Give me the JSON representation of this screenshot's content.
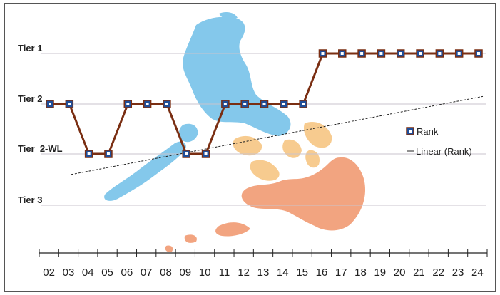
{
  "chart_data": {
    "type": "line",
    "title": "",
    "xlabel": "",
    "ylabel": "",
    "categories": [
      "02",
      "03",
      "04",
      "05",
      "06",
      "07",
      "08",
      "09",
      "10",
      "11",
      "12",
      "13",
      "14",
      "15",
      "16",
      "17",
      "18",
      "19",
      "20",
      "21",
      "22",
      "23",
      "24"
    ],
    "tiers": [
      "Tier 1",
      "Tier 2",
      "Tier  2-WL",
      "Tier 3"
    ],
    "series": [
      {
        "name": "Rank",
        "color": "#7a2e12",
        "marker_color": "#1f4e99",
        "values": [
          "Tier 2",
          "Tier 2",
          "Tier  2-WL",
          "Tier  2-WL",
          "Tier 2",
          "Tier 2",
          "Tier 2",
          "Tier  2-WL",
          "Tier  2-WL",
          "Tier 2",
          "Tier 2",
          "Tier 2",
          "Tier 2",
          "Tier 2",
          "Tier 1",
          "Tier 1",
          "Tier 1",
          "Tier 1",
          "Tier 1",
          "Tier 1",
          "Tier 1",
          "Tier 1",
          "Tier 1"
        ]
      }
    ],
    "trendline": {
      "name": "Linear (Rank)",
      "color": "#222222",
      "start_tier_position": 2.4,
      "end_tier_position": 0.85
    },
    "legend": {
      "position": "right",
      "entries": [
        "Rank",
        "Linear (Rank)"
      ]
    },
    "grid": true,
    "background": "Philippines map silhouette (Luzon blue, Visayas yellow, Mindanao orange)"
  }
}
